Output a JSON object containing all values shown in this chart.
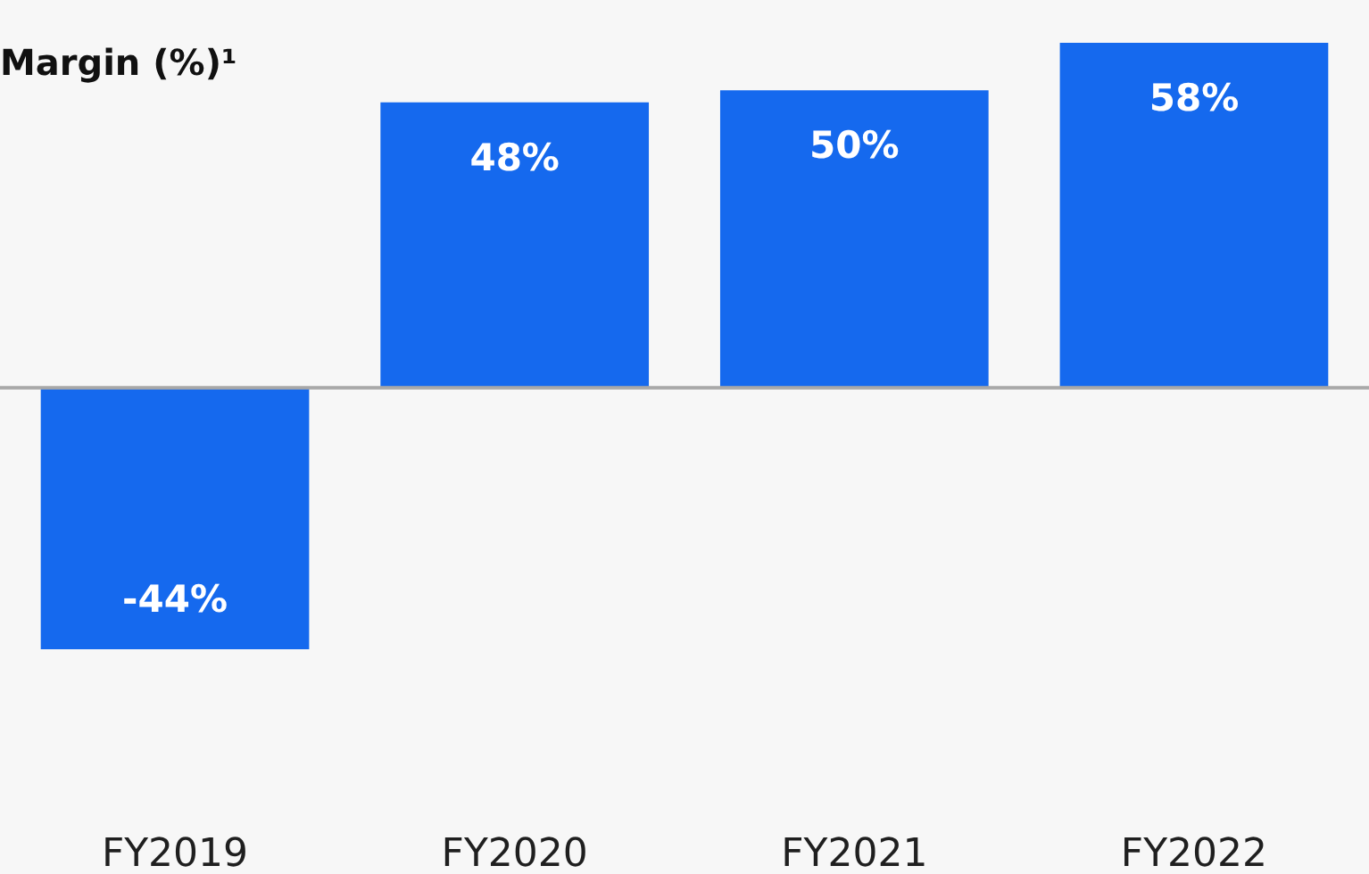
{
  "chart_data": {
    "type": "bar",
    "title": "Margin (%)¹",
    "categories": [
      "FY2019",
      "FY2020",
      "FY2021",
      "FY2022"
    ],
    "values": [
      -44,
      48,
      50,
      58
    ],
    "value_labels": [
      "-44%",
      "48%",
      "50%",
      "58%"
    ],
    "color": "#1569ee"
  }
}
